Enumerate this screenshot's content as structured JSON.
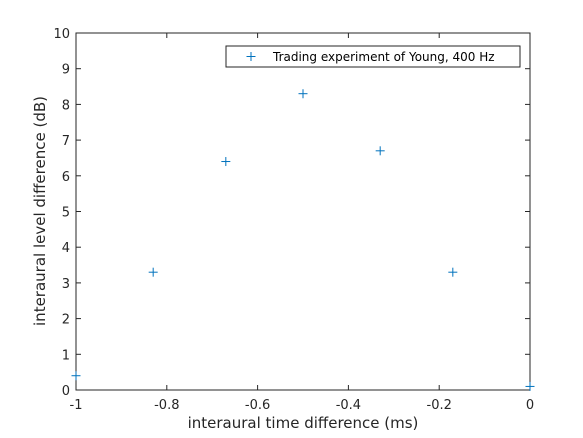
{
  "chart_data": {
    "type": "scatter",
    "xlabel": "interaural time difference (ms)",
    "ylabel": "interaural level difference (dB)",
    "xlim": [
      -1,
      0
    ],
    "ylim": [
      0,
      10
    ],
    "x_ticks": [
      "-1",
      "-0.8",
      "-0.6",
      "-0.4",
      "-0.2",
      "0"
    ],
    "y_ticks": [
      "0",
      "1",
      "2",
      "3",
      "4",
      "5",
      "6",
      "7",
      "8",
      "9",
      "10"
    ],
    "grid": false,
    "legend_position": "top-right",
    "marker": "plus",
    "series": [
      {
        "name": "Trading experiment of Young, 400 Hz",
        "color": "#0072bd",
        "x": [
          -1.0,
          -0.83,
          -0.67,
          -0.5,
          -0.33,
          -0.17,
          0.0
        ],
        "y": [
          0.4,
          3.3,
          6.4,
          8.3,
          6.7,
          3.3,
          0.1
        ]
      }
    ]
  }
}
